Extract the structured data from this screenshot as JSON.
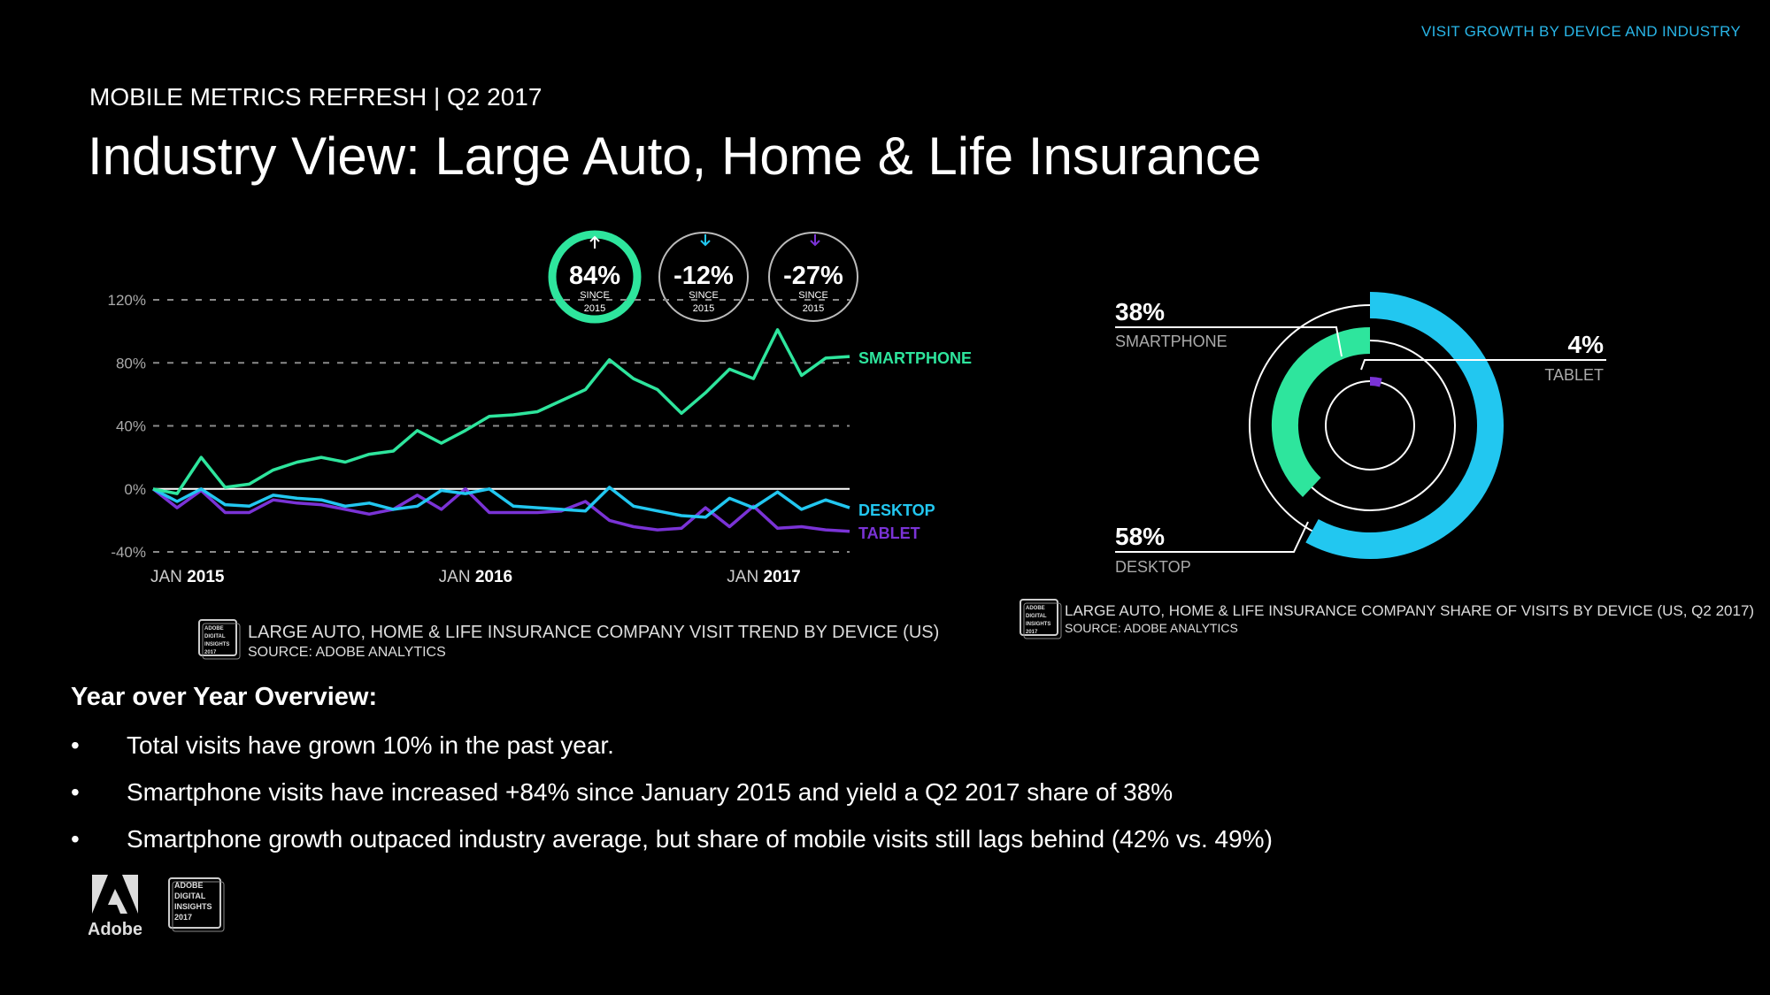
{
  "header": {
    "top_tag": "VISIT GROWTH BY DEVICE AND INDUSTRY",
    "kicker": "MOBILE METRICS REFRESH | Q2 2017",
    "title": "Industry View: Large Auto, Home & Life Insurance"
  },
  "colors": {
    "smartphone": "#2ee59d",
    "desktop": "#22c7f0",
    "tablet": "#7a33d6",
    "grid": "#8a8a8a",
    "accent_tag": "#29b6e8"
  },
  "badges": [
    {
      "value": "84%",
      "since": "SINCE",
      "year": "2015",
      "direction": "up",
      "color": "#2ee59d"
    },
    {
      "value": "-12%",
      "since": "SINCE",
      "year": "2015",
      "direction": "down",
      "color": "#22c7f0"
    },
    {
      "value": "-27%",
      "since": "SINCE",
      "year": "2015",
      "direction": "down",
      "color": "#7a33d6"
    }
  ],
  "chart_data": [
    {
      "type": "line",
      "yticks": [
        "120%",
        "80%",
        "40%",
        "0%",
        "-40%"
      ],
      "ylim": [
        -40,
        120
      ],
      "x_ticks": [
        {
          "index": 0,
          "prefix": "JAN",
          "year": "2015"
        },
        {
          "index": 12,
          "prefix": "JAN",
          "year": "2016"
        },
        {
          "index": 24,
          "prefix": "JAN",
          "year": "2017"
        }
      ],
      "grid": "dashed horizontal",
      "series": [
        {
          "name": "SMARTPHONE",
          "color": "#2ee59d",
          "values": [
            0,
            -3,
            20,
            1,
            3,
            12,
            17,
            20,
            17,
            22,
            24,
            37,
            29,
            37,
            46,
            47,
            49,
            56,
            63,
            82,
            70,
            63,
            48,
            61,
            76,
            70,
            101,
            72,
            83,
            84
          ]
        },
        {
          "name": "DESKTOP",
          "color": "#22c7f0",
          "values": [
            0,
            -8,
            0,
            -10,
            -11,
            -4,
            -6,
            -7,
            -11,
            -9,
            -13,
            -11,
            -1,
            -3,
            0,
            -11,
            -12,
            -13,
            -14,
            1,
            -11,
            -14,
            -17,
            -18,
            -6,
            -12,
            -2,
            -13,
            -7,
            -12
          ]
        },
        {
          "name": "TABLET",
          "color": "#7a33d6",
          "values": [
            0,
            -12,
            -1,
            -15,
            -15,
            -7,
            -9,
            -10,
            -13,
            -16,
            -13,
            -4,
            -13,
            0,
            -15,
            -15,
            -15,
            -14,
            -8,
            -20,
            -24,
            -26,
            -25,
            -12,
            -24,
            -11,
            -25,
            -24,
            -26,
            -27
          ]
        }
      ],
      "caption": "LARGE AUTO, HOME & LIFE INSURANCE COMPANY VISIT TREND BY DEVICE (US)",
      "source": "SOURCE: ADOBE ANALYTICS"
    },
    {
      "type": "pie",
      "style": "concentric rings",
      "slices": [
        {
          "label": "SMARTPHONE",
          "value": 38,
          "display": "38%",
          "color": "#2ee59d"
        },
        {
          "label": "TABLET",
          "value": 4,
          "display": "4%",
          "color": "#7a33d6"
        },
        {
          "label": "DESKTOP",
          "value": 58,
          "display": "58%",
          "color": "#22c7f0"
        }
      ],
      "caption": "LARGE AUTO, HOME & LIFE INSURANCE COMPANY SHARE OF VISITS BY DEVICE (US, Q2 2017)",
      "source": "SOURCE: ADOBE ANALYTICS"
    }
  ],
  "overview": {
    "heading": "Year over Year Overview:",
    "bullet_glyph": "•",
    "bullets": [
      "Total visits have grown 10% in the past year.",
      "Smartphone visits have increased +84% since January 2015 and yield a Q2 2017 share of 38%",
      "Smartphone growth outpaced industry average, but share of mobile visits still lags behind (42% vs. 49%)"
    ]
  },
  "badge_logo": {
    "lines": [
      "ADOBE",
      "DIGITAL",
      "INSIGHTS",
      "2017"
    ]
  },
  "footer": {
    "brand": "Adobe"
  }
}
